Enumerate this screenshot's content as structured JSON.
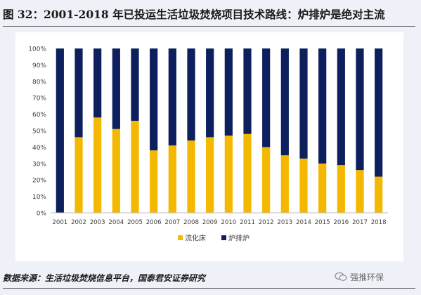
{
  "title": "图 32：2001-2018 年已投运生活垃圾焚烧项目技术路线：炉排炉是绝对主流",
  "source": "数据来源：生活垃圾焚烧信息平台，国泰君安证券研究",
  "watermark": "强推环保",
  "colors": {
    "fluidized_bed": "#f5b800",
    "grate_furnace": "#0d1f5c",
    "axis": "#bfbfbf",
    "text": "#404040"
  },
  "chart_data": {
    "type": "bar",
    "stacked": true,
    "categories": [
      "2001",
      "2002",
      "2003",
      "2004",
      "2005",
      "2006",
      "2007",
      "2008",
      "2009",
      "2010",
      "2011",
      "2012",
      "2013",
      "2014",
      "2015",
      "2016",
      "2017",
      "2018"
    ],
    "series": [
      {
        "name": "流化床",
        "values": [
          0,
          46,
          58,
          51,
          56,
          38,
          41,
          44,
          46,
          47,
          48,
          40,
          35,
          33,
          30,
          29,
          26,
          22
        ]
      },
      {
        "name": "炉排炉",
        "values": [
          100,
          54,
          42,
          49,
          44,
          62,
          59,
          56,
          54,
          53,
          52,
          60,
          65,
          67,
          70,
          71,
          74,
          78
        ]
      }
    ],
    "yticks": [
      "0%",
      "10%",
      "20%",
      "30%",
      "40%",
      "50%",
      "60%",
      "70%",
      "80%",
      "90%",
      "100%"
    ],
    "ylim": [
      0,
      100
    ],
    "legend_position": "bottom"
  }
}
